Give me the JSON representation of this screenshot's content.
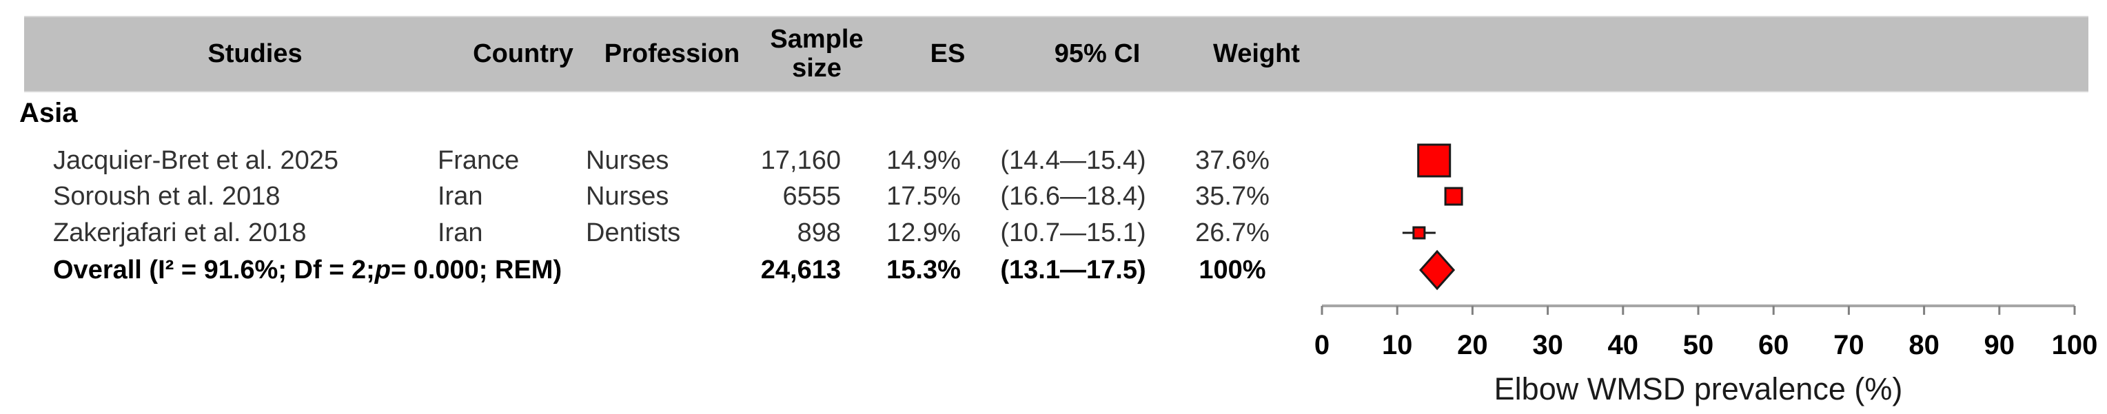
{
  "group_label": "Asia",
  "table": {
    "headers": {
      "studies": "Studies",
      "country": "Country",
      "profession": "Profession",
      "sample_size": "Sample size",
      "es": "ES",
      "ci": "95% CI",
      "weight": "Weight"
    },
    "rows": [
      {
        "study": "Jacquier-Bret et al. 2025",
        "country": "France",
        "profession": "Nurses",
        "sample_size": "17,160",
        "es": "14.9%",
        "ci": "(14.4—15.4)",
        "weight": "37.6%"
      },
      {
        "study": "Soroush et al. 2018",
        "country": "Iran",
        "profession": "Nurses",
        "sample_size": "6555",
        "es": "17.5%",
        "ci": "(16.6—18.4)",
        "weight": "35.7%"
      },
      {
        "study": "Zakerjafari et al. 2018",
        "country": "Iran",
        "profession": "Dentists",
        "sample_size": "898",
        "es": "12.9%",
        "ci": "(10.7—15.1)",
        "weight": "26.7%"
      }
    ],
    "overall": {
      "label_prefix": "Overall (I² = 91.6%; Df = 2; ",
      "p_italic": "p",
      "label_suffix": " = 0.000; REM)",
      "sample_size": "24,613",
      "es": "15.3%",
      "ci": "(13.1—17.5)",
      "weight": "100%"
    }
  },
  "chart_data": {
    "type": "scatter",
    "subtype": "forest_plot",
    "title": "",
    "xlabel": "Elbow WMSD prevalence (%)",
    "ylabel": "",
    "xlim": [
      0,
      100
    ],
    "xticks": [
      0,
      10,
      20,
      30,
      40,
      50,
      60,
      70,
      80,
      90,
      100
    ],
    "grid": false,
    "points": [
      {
        "label": "Jacquier-Bret et al. 2025",
        "es": 14.9,
        "ci": [
          14.4,
          15.4
        ],
        "weight": 37.6,
        "marker": "square",
        "marker_px": 46
      },
      {
        "label": "Soroush et al. 2018",
        "es": 17.5,
        "ci": [
          16.6,
          18.4
        ],
        "weight": 35.7,
        "marker": "square",
        "marker_px": 24
      },
      {
        "label": "Zakerjafari et al. 2018",
        "es": 12.9,
        "ci": [
          10.7,
          15.1
        ],
        "weight": 26.7,
        "marker": "square",
        "marker_px": 16
      },
      {
        "label": "Overall",
        "es": 15.3,
        "ci": [
          13.1,
          17.5
        ],
        "weight": 100,
        "marker": "diamond"
      }
    ],
    "colors": {
      "marker_fill": "#ff0000",
      "marker_stroke": "#1a1a1a",
      "ci_line": "#1a1a1a",
      "axis_line": "#a6a6a6",
      "tick": "#808080",
      "tick_label": "#000000",
      "header_bg": "#bfbfbf"
    }
  }
}
